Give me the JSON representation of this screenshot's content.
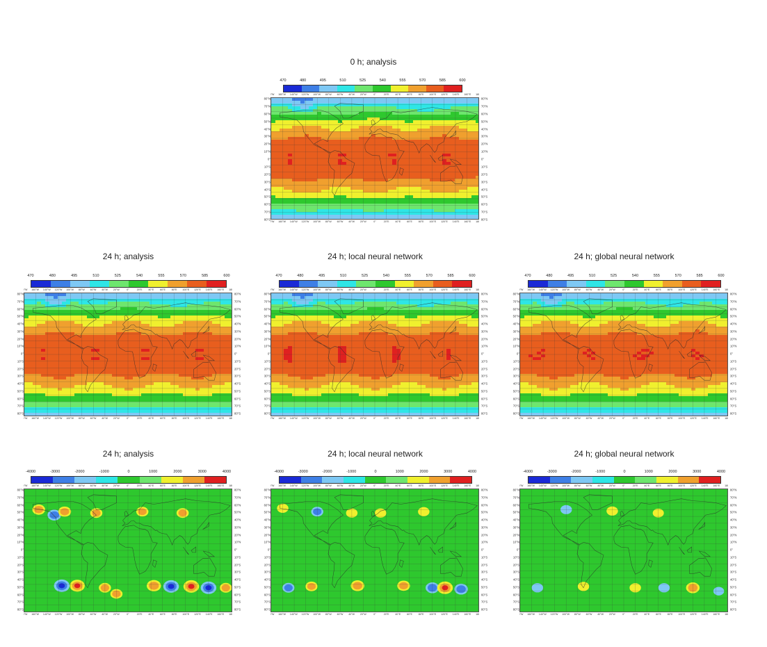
{
  "scales": {
    "height": {
      "labels": [
        "470",
        "480",
        "495",
        "510",
        "525",
        "540",
        "555",
        "570",
        "585",
        "600"
      ],
      "colors": [
        "#1a2ad6",
        "#3e7fe6",
        "#7ec8f4",
        "#2ee6e6",
        "#6ee66e",
        "#2ec82e",
        "#f0f02e",
        "#f0a02e",
        "#e85e1e",
        "#e02020"
      ]
    },
    "diff": {
      "labels": [
        "-4000",
        "-3000",
        "-2000",
        "-1000",
        "0",
        "1000",
        "2000",
        "3000",
        "4000"
      ],
      "colors": [
        "#1a2ad6",
        "#3e7fe6",
        "#7ec8f4",
        "#2ee6e6",
        "#2ec82e",
        "#6ee66e",
        "#f0f02e",
        "#f0a02e",
        "#e02020"
      ]
    }
  },
  "longitude_labels": [
    "180°W",
    "160°W",
    "140°W",
    "120°W",
    "100°W",
    "80°W",
    "60°W",
    "40°W",
    "20°W",
    "0°",
    "20°E",
    "40°E",
    "60°E",
    "80°E",
    "100°E",
    "120°E",
    "140°E",
    "160°E",
    "180°E"
  ],
  "latitude_labels": [
    "80°N",
    "70°N",
    "60°N",
    "50°N",
    "40°N",
    "30°N",
    "20°N",
    "10°N",
    "0°",
    "10°S",
    "20°S",
    "30°S",
    "40°S",
    "50°S",
    "60°S",
    "70°S",
    "80°S"
  ],
  "panels": [
    {
      "id": "p0",
      "title": "0 h; analysis",
      "field": "height"
    },
    {
      "id": "p1",
      "title": "24 h; analysis",
      "field": "height"
    },
    {
      "id": "p2",
      "title": "24 h; local neural network",
      "field": "height"
    },
    {
      "id": "p3",
      "title": "24 h; global neural network",
      "field": "height"
    },
    {
      "id": "p4",
      "title": "24 h; analysis",
      "field": "diff"
    },
    {
      "id": "p5",
      "title": "24 h; local neural network",
      "field": "diff"
    },
    {
      "id": "p6",
      "title": "24 h; global neural network",
      "field": "diff"
    }
  ],
  "diff_anomalies": {
    "p4": [
      {
        "lon": -155,
        "lat": 60,
        "sign": 1,
        "mag": 0.6
      },
      {
        "lon": -128,
        "lat": 52,
        "sign": -1,
        "mag": 0.7
      },
      {
        "lon": -110,
        "lat": 57,
        "sign": 1,
        "mag": 0.6
      },
      {
        "lon": -55,
        "lat": 55,
        "sign": 1,
        "mag": 0.5
      },
      {
        "lon": 25,
        "lat": 57,
        "sign": 1,
        "mag": 0.5
      },
      {
        "lon": 95,
        "lat": 55,
        "sign": 1,
        "mag": 0.5
      },
      {
        "lon": -115,
        "lat": -52,
        "sign": -1,
        "mag": 1
      },
      {
        "lon": -88,
        "lat": -52,
        "sign": 1,
        "mag": 0.9
      },
      {
        "lon": -40,
        "lat": -55,
        "sign": 1,
        "mag": 0.5
      },
      {
        "lon": 45,
        "lat": -52,
        "sign": 1,
        "mag": 0.8
      },
      {
        "lon": 75,
        "lat": -53,
        "sign": -1,
        "mag": 1
      },
      {
        "lon": 110,
        "lat": -53,
        "sign": 1,
        "mag": 1
      },
      {
        "lon": 140,
        "lat": -55,
        "sign": -1,
        "mag": 1
      },
      {
        "lon": 170,
        "lat": -55,
        "sign": 1,
        "mag": 0.5
      },
      {
        "lon": -20,
        "lat": -64,
        "sign": 1,
        "mag": 0.5
      }
    ],
    "p5": [
      {
        "lon": -160,
        "lat": 62,
        "sign": 1,
        "mag": 0.4
      },
      {
        "lon": -100,
        "lat": 57,
        "sign": -1,
        "mag": 0.5
      },
      {
        "lon": -40,
        "lat": 55,
        "sign": 1,
        "mag": 0.4
      },
      {
        "lon": 10,
        "lat": 55,
        "sign": 1,
        "mag": 0.4
      },
      {
        "lon": 85,
        "lat": 57,
        "sign": 1,
        "mag": 0.4
      },
      {
        "lon": -150,
        "lat": -55,
        "sign": -1,
        "mag": 0.5
      },
      {
        "lon": -110,
        "lat": -53,
        "sign": 1,
        "mag": 0.5
      },
      {
        "lon": -30,
        "lat": -52,
        "sign": 1,
        "mag": 0.7
      },
      {
        "lon": 50,
        "lat": -52,
        "sign": 1,
        "mag": 0.6
      },
      {
        "lon": 100,
        "lat": -55,
        "sign": -1,
        "mag": 0.7
      },
      {
        "lon": 122,
        "lat": -55,
        "sign": 1,
        "mag": 1
      },
      {
        "lon": 150,
        "lat": -57,
        "sign": -1,
        "mag": 0.7
      }
    ],
    "p6": [
      {
        "lon": -100,
        "lat": 60,
        "sign": -1,
        "mag": 0.4
      },
      {
        "lon": -20,
        "lat": 58,
        "sign": 1,
        "mag": 0.4
      },
      {
        "lon": 60,
        "lat": 55,
        "sign": 1,
        "mag": 0.35
      },
      {
        "lon": -150,
        "lat": -55,
        "sign": -1,
        "mag": 0.4
      },
      {
        "lon": -70,
        "lat": -53,
        "sign": 1,
        "mag": 0.4
      },
      {
        "lon": 20,
        "lat": -55,
        "sign": 1,
        "mag": 0.4
      },
      {
        "lon": 70,
        "lat": -55,
        "sign": -1,
        "mag": 0.4
      },
      {
        "lon": 120,
        "lat": -55,
        "sign": 1,
        "mag": 0.7
      },
      {
        "lon": 165,
        "lat": -60,
        "sign": -1,
        "mag": 0.3
      }
    ]
  }
}
